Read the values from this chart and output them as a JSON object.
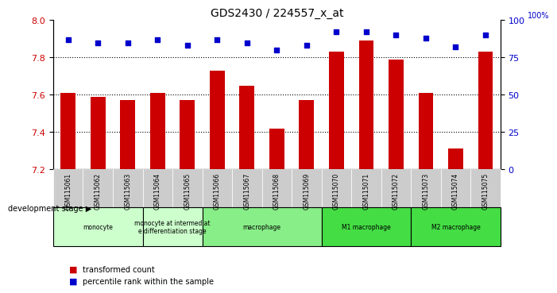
{
  "title": "GDS2430 / 224557_x_at",
  "samples": [
    "GSM115061",
    "GSM115062",
    "GSM115063",
    "GSM115064",
    "GSM115065",
    "GSM115066",
    "GSM115067",
    "GSM115068",
    "GSM115069",
    "GSM115070",
    "GSM115071",
    "GSM115072",
    "GSM115073",
    "GSM115074",
    "GSM115075"
  ],
  "bar_values": [
    7.61,
    7.59,
    7.57,
    7.61,
    7.57,
    7.73,
    7.65,
    7.42,
    7.57,
    7.83,
    7.89,
    7.79,
    7.61,
    7.31,
    7.83
  ],
  "dot_values": [
    87,
    85,
    85,
    87,
    83,
    87,
    85,
    80,
    83,
    92,
    92,
    90,
    88,
    82,
    90
  ],
  "ylim_left": [
    7.2,
    8.0
  ],
  "ylim_right": [
    0,
    100
  ],
  "yticks_left": [
    7.2,
    7.4,
    7.6,
    7.8,
    8.0
  ],
  "yticks_right": [
    0,
    25,
    50,
    75,
    100
  ],
  "bar_color": "#cc0000",
  "dot_color": "#0000cc",
  "groups": [
    {
      "label": "monocyte",
      "start": 0,
      "end": 3,
      "color": "#ccffcc"
    },
    {
      "label": "monocyte at intermediat\ne differentiation stage",
      "start": 3,
      "end": 5,
      "color": "#ccffcc"
    },
    {
      "label": "macrophage",
      "start": 5,
      "end": 9,
      "color": "#88ee88"
    },
    {
      "label": "M1 macrophage",
      "start": 9,
      "end": 12,
      "color": "#44dd44"
    },
    {
      "label": "M2 macrophage",
      "start": 12,
      "end": 15,
      "color": "#44dd44"
    }
  ],
  "xlabel": "development stage",
  "legend_bar_label": "transformed count",
  "legend_dot_label": "percentile rank within the sample",
  "sample_box_color": "#cccccc"
}
